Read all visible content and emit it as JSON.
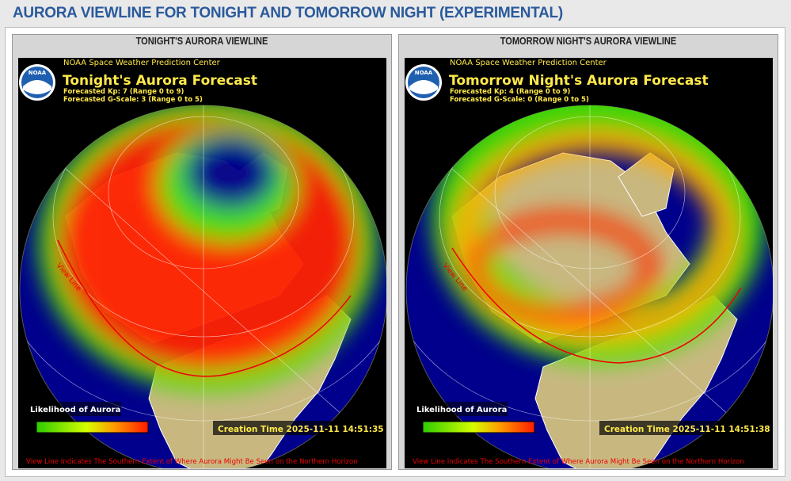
{
  "page_title": "AURORA VIEWLINE FOR TONIGHT AND TOMORROW NIGHT (EXPERIMENTAL)",
  "panels": [
    {
      "header": "TONIGHT'S AURORA VIEWLINE",
      "image": {
        "agency": "NOAA Space Weather Prediction Center",
        "logo": "NOAA",
        "title": "Tonight's Aurora Forecast",
        "kp": "Forecasted Kp: 7 (Range 0 to 9)",
        "g_scale": "Forecasted G-Scale: 3 (Range 0 to 5)",
        "legend_title": "Likelihood of Aurora",
        "view_line_label": "View Line",
        "creation_time": "Creation Time 2025-11-11 14:51:35",
        "footnote": "View Line Indicates The Southern Extent of Where Aurora Might Be Seen on the Northern Horizon"
      }
    },
    {
      "header": "TOMORROW NIGHT'S AURORA VIEWLINE",
      "image": {
        "agency": "NOAA Space Weather Prediction Center",
        "logo": "NOAA",
        "title": "Tomorrow Night's Aurora Forecast",
        "kp": "Forecasted Kp: 4 (Range 0 to 9)",
        "g_scale": "Forecasted G-Scale: 0 (Range 0 to 5)",
        "legend_title": "Likelihood of Aurora",
        "view_line_label": "View Line",
        "creation_time": "Creation Time 2025-11-11 14:51:38",
        "footnote": "View Line Indicates The Southern Extent of Where Aurora Might Be Seen on the Northern Horizon"
      }
    }
  ]
}
